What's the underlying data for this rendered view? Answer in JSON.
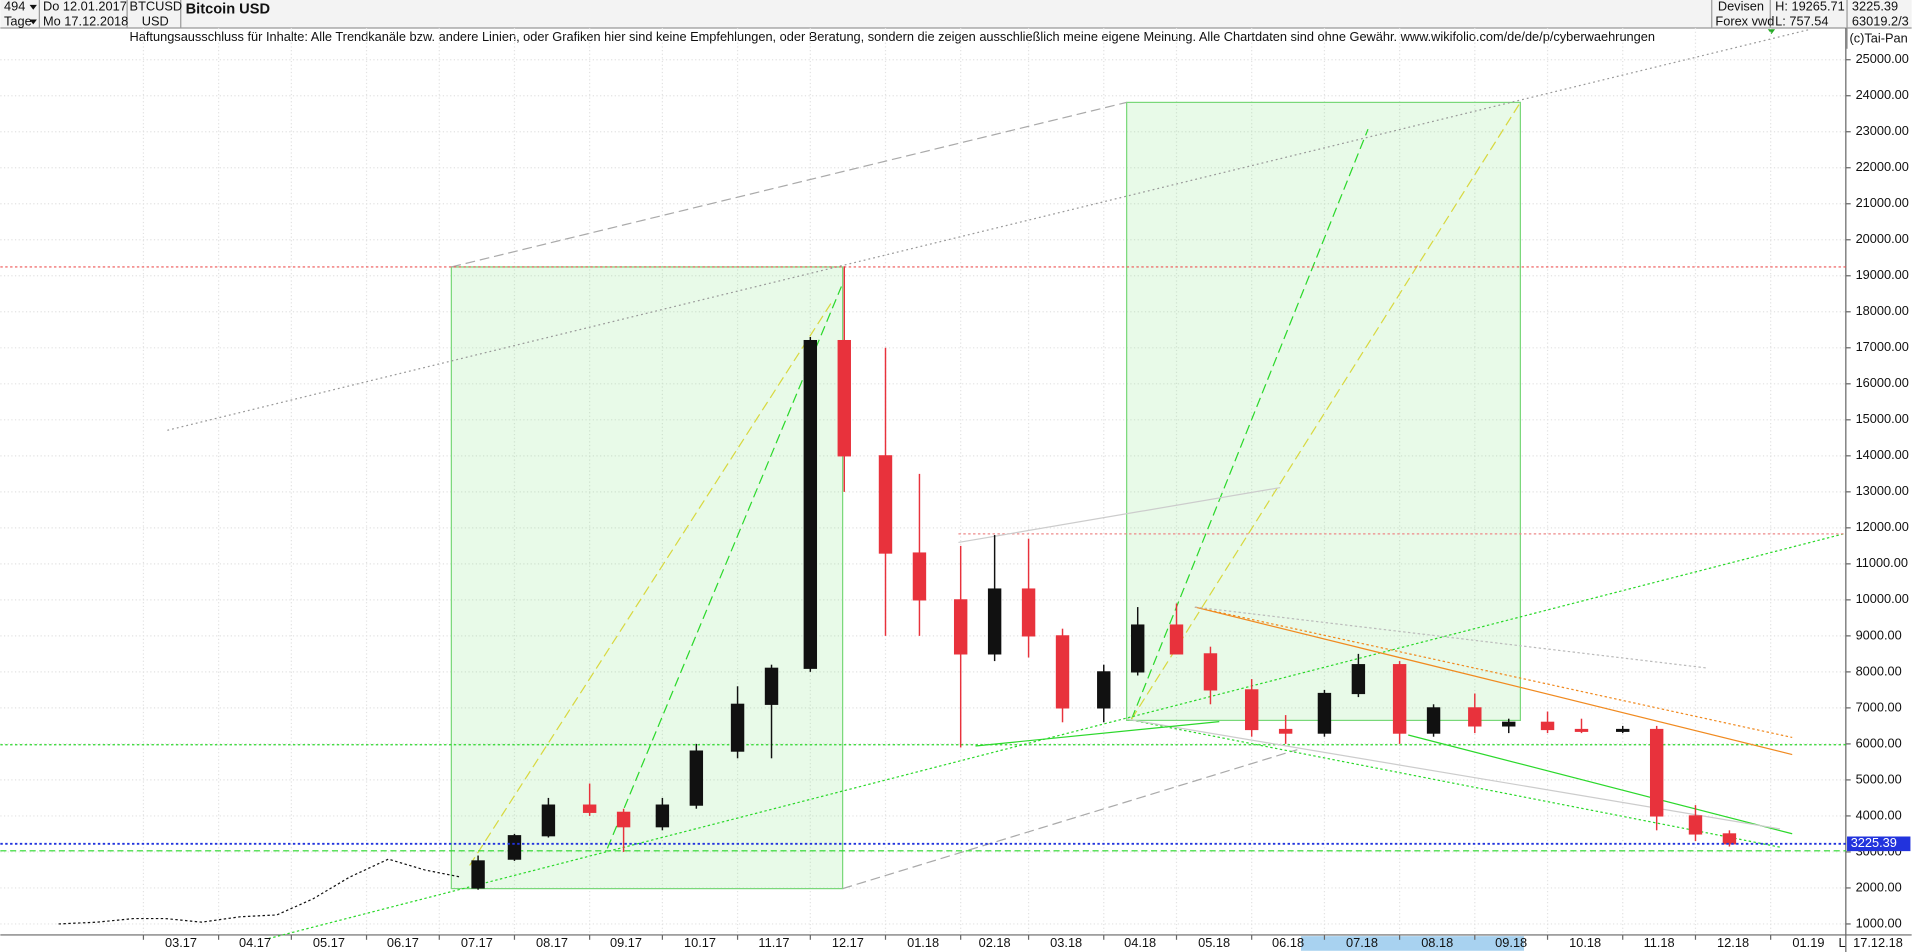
{
  "header": {
    "count": "494",
    "period": "Tage",
    "from": "Do 12.01.2017",
    "to": "Mo 17.12.2018",
    "symbol": "BTCUSD",
    "currency": "USD",
    "market": "Devisen",
    "source": "Forex vwd",
    "high": "H: 19265.71",
    "low": "L: 757.54",
    "volume": "63019.2/3",
    "copyright": "(c)Tai-Pan",
    "axis_end": "L",
    "date_short": "17.12.18"
  },
  "chart_data": {
    "type": "candlestick",
    "title": "Bitcoin USD",
    "subtitle": "Haftungsausschluss für Inhalte: Alle Trendkanäle bzw. andere Linien, oder Grafiken hier sind keine Empfehlungen, oder Beratung, sondern die zeigen ausschließlich meine eigene Meinung. Alle Chartdaten sind ohne Gewähr.  www.wikifolio.com/de/de/p/cyberwaehrungen",
    "current_price": 3225.39,
    "line_x": [
      "2017-01-25",
      "2017-02-10",
      "2017-02-25",
      "2017-03-10",
      "2017-03-25",
      "2017-04-10",
      "2017-04-25",
      "2017-05-10",
      "2017-05-25",
      "2017-06-10",
      "2017-06-25",
      "2017-07-10"
    ],
    "line_values": [
      1000,
      1050,
      1150,
      1150,
      1050,
      1200,
      1250,
      1700,
      2300,
      2800,
      2500,
      2300
    ],
    "x": [
      "2017-07-17",
      "2017-08-01",
      "2017-08-15",
      "2017-09-01",
      "2017-09-15",
      "2017-10-01",
      "2017-10-15",
      "2017-11-01",
      "2017-11-15",
      "2017-12-01",
      "2017-12-15",
      "2018-01-01",
      "2018-01-15",
      "2018-02-01",
      "2018-02-15",
      "2018-03-01",
      "2018-03-15",
      "2018-04-01",
      "2018-04-15",
      "2018-05-01",
      "2018-05-15",
      "2018-06-01",
      "2018-06-15",
      "2018-07-01",
      "2018-07-15",
      "2018-08-01",
      "2018-08-15",
      "2018-09-01",
      "2018-09-15",
      "2018-10-01",
      "2018-10-15",
      "2018-11-01",
      "2018-11-15",
      "2018-12-01",
      "2018-12-15"
    ],
    "open": [
      2000,
      2800,
      3450,
      4300,
      4100,
      3700,
      4300,
      5800,
      7100,
      8100,
      17200,
      14000,
      11300,
      10000,
      8500,
      10300,
      9000,
      7000,
      8000,
      9300,
      8500,
      7500,
      6400,
      6300,
      7400,
      8200,
      6300,
      7000,
      6500,
      6600,
      6400,
      6350,
      6400,
      4000,
      3500
    ],
    "high": [
      2900,
      3500,
      4500,
      4900,
      4200,
      4500,
      6000,
      7600,
      8200,
      17300,
      19265.71,
      17000,
      13500,
      11500,
      11800,
      11700,
      9200,
      8200,
      9800,
      9900,
      8700,
      7800,
      6800,
      7500,
      8500,
      8300,
      7100,
      7400,
      6700,
      6900,
      6700,
      6500,
      6500,
      4300,
      3600
    ],
    "low": [
      1950,
      2750,
      3400,
      4000,
      3000,
      3600,
      4200,
      5600,
      5600,
      8000,
      13000,
      9000,
      9000,
      5900,
      8300,
      8400,
      6600,
      6600,
      7900,
      8500,
      7100,
      6200,
      6000,
      6200,
      7300,
      6000,
      6200,
      6300,
      6300,
      6300,
      6300,
      6300,
      3600,
      3300,
      3150
    ],
    "close": [
      2750,
      3450,
      4300,
      4100,
      3700,
      4300,
      5800,
      7100,
      8100,
      17200,
      14000,
      11300,
      10000,
      8500,
      10300,
      9000,
      7000,
      8000,
      9300,
      8500,
      7500,
      6400,
      6300,
      7400,
      8200,
      6300,
      7000,
      6500,
      6600,
      6400,
      6350,
      6400,
      4000,
      3500,
      3225.39
    ],
    "up_color": "#111111",
    "down_color": "#e8323c",
    "xlim": [
      "2017-01",
      "2019-02"
    ],
    "xticks": [
      {
        "value": "2017-03",
        "label": "03.17"
      },
      {
        "value": "2017-04",
        "label": "04.17"
      },
      {
        "value": "2017-05",
        "label": "05.17"
      },
      {
        "value": "2017-06",
        "label": "06.17"
      },
      {
        "value": "2017-07",
        "label": "07.17"
      },
      {
        "value": "2017-08",
        "label": "08.17"
      },
      {
        "value": "2017-09",
        "label": "09.17"
      },
      {
        "value": "2017-10",
        "label": "10.17"
      },
      {
        "value": "2017-11",
        "label": "11.17"
      },
      {
        "value": "2017-12",
        "label": "12.17"
      },
      {
        "value": "2018-01",
        "label": "01.18"
      },
      {
        "value": "2018-02",
        "label": "02.18"
      },
      {
        "value": "2018-03",
        "label": "03.18"
      },
      {
        "value": "2018-04",
        "label": "04.18"
      },
      {
        "value": "2018-05",
        "label": "05.18"
      },
      {
        "value": "2018-06",
        "label": "06.18"
      },
      {
        "value": "2018-07",
        "label": "07.18"
      },
      {
        "value": "2018-08",
        "label": "08.18"
      },
      {
        "value": "2018-09",
        "label": "09.18"
      },
      {
        "value": "2018-10",
        "label": "10.18"
      },
      {
        "value": "2018-11",
        "label": "11.18"
      },
      {
        "value": "2018-12",
        "label": "12.18"
      },
      {
        "value": "2019-01",
        "label": "01.19"
      }
    ],
    "ylim": [
      695,
      25880
    ],
    "yticks": [
      {
        "value": 1000,
        "label": "1000.00"
      },
      {
        "value": 2000,
        "label": "2000.00"
      },
      {
        "value": 3000,
        "label": "3000.00"
      },
      {
        "value": 4000,
        "label": "4000.00"
      },
      {
        "value": 5000,
        "label": "5000.00"
      },
      {
        "value": 6000,
        "label": "6000.00"
      },
      {
        "value": 7000,
        "label": "7000.00"
      },
      {
        "value": 8000,
        "label": "8000.00"
      },
      {
        "value": 9000,
        "label": "9000.00"
      },
      {
        "value": 10000,
        "label": "10000.00"
      },
      {
        "value": 11000,
        "label": "11000.00"
      },
      {
        "value": 12000,
        "label": "12000.00"
      },
      {
        "value": 13000,
        "label": "13000.00"
      },
      {
        "value": 14000,
        "label": "14000.00"
      },
      {
        "value": 15000,
        "label": "15000.00"
      },
      {
        "value": 16000,
        "label": "16000.00"
      },
      {
        "value": 17000,
        "label": "17000.00"
      },
      {
        "value": 18000,
        "label": "18000.00"
      },
      {
        "value": 19000,
        "label": "19000.00"
      },
      {
        "value": 20000,
        "label": "20000.00"
      },
      {
        "value": 21000,
        "label": "21000.00"
      },
      {
        "value": 22000,
        "label": "22000.00"
      },
      {
        "value": 23000,
        "label": "23000.00"
      },
      {
        "value": 24000,
        "label": "24000.00"
      },
      {
        "value": 25000,
        "label": "25000.00"
      }
    ],
    "grid": true
  }
}
